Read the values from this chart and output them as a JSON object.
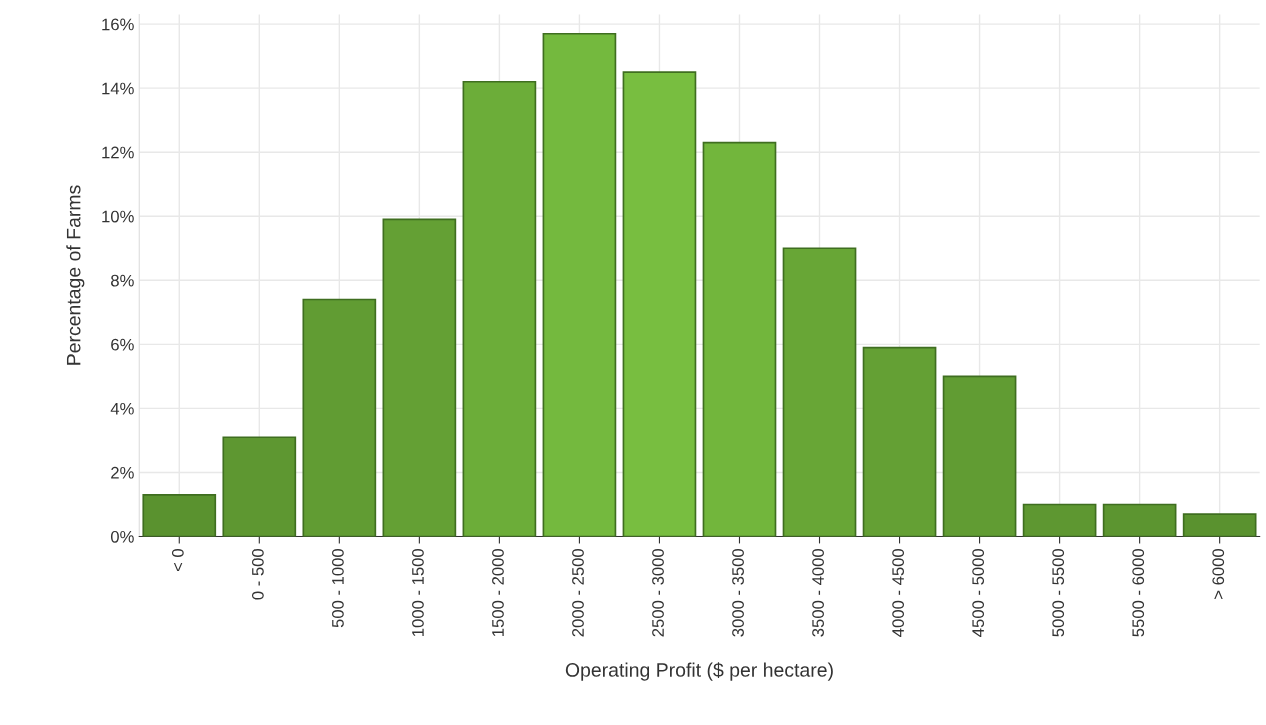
{
  "chart_data": {
    "type": "bar",
    "xlabel": "Operating Profit ($ per hectare)",
    "ylabel": "Percentage of Farms",
    "categories": [
      "< 0",
      "0 - 500",
      "500 - 1000",
      "1000 - 1500",
      "1500 - 2000",
      "2000 - 2500",
      "2500 - 3000",
      "3000 - 3500",
      "3500 - 4000",
      "4000 - 4500",
      "4500 - 5000",
      "5000 - 5500",
      "5500 - 6000",
      "> 6000"
    ],
    "values": [
      1.3,
      3.1,
      7.4,
      9.9,
      14.2,
      15.7,
      14.5,
      12.3,
      9.0,
      5.9,
      5.0,
      1.0,
      1.0,
      0.7
    ],
    "colors": [
      "#5a922f",
      "#5e9731",
      "#619c33",
      "#64a034",
      "#6cad39",
      "#74b93e",
      "#78be40",
      "#72b63c",
      "#68a636",
      "#64a034",
      "#619c33",
      "#5e9731",
      "#5c9530",
      "#5a922f"
    ],
    "ylim": [
      0,
      16.3
    ],
    "yticks": [
      {
        "value": 0,
        "label": "0%"
      },
      {
        "value": 2,
        "label": "2%"
      },
      {
        "value": 4,
        "label": "4%"
      },
      {
        "value": 6,
        "label": "6%"
      },
      {
        "value": 8,
        "label": "8%"
      },
      {
        "value": 10,
        "label": "10%"
      },
      {
        "value": 12,
        "label": "12%"
      },
      {
        "value": 14,
        "label": "14%"
      },
      {
        "value": 16,
        "label": "16%"
      }
    ],
    "grid": true
  }
}
